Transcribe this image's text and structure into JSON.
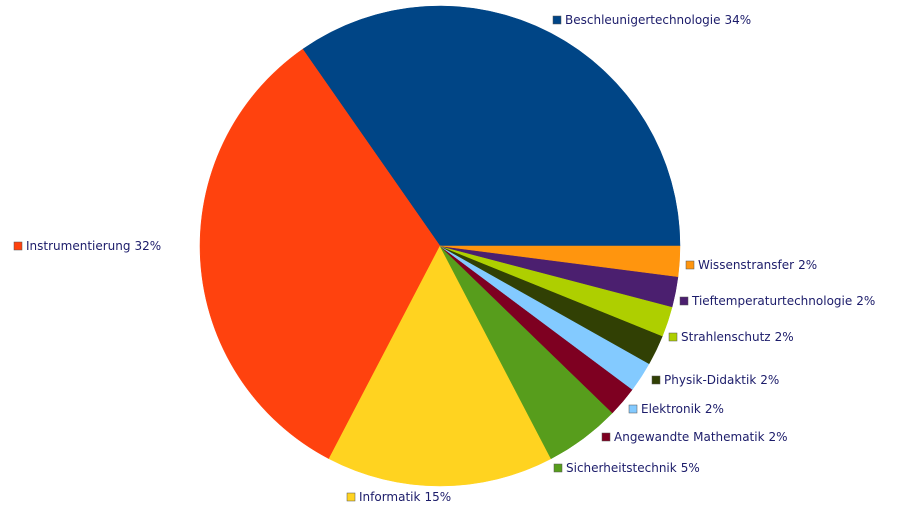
{
  "chart_data": {
    "type": "pie",
    "categories": [
      "Beschleunigertechnologie",
      "Instrumentierung",
      "Informatik",
      "Sicherheitstechnik",
      "Angewandte Mathematik",
      "Elektronik",
      "Physik-Didaktik",
      "Strahlenschutz",
      "Tieftemperaturtechnologie",
      "Wissenstransfer"
    ],
    "values": [
      34,
      32,
      15,
      5,
      2,
      2,
      2,
      2,
      2,
      2
    ],
    "value_labels": [
      "34%",
      "32%",
      "15%",
      "5%",
      "2%",
      "2%",
      "2%",
      "2%",
      "2%",
      "2%"
    ],
    "colors": [
      "#004586",
      "#ff420e",
      "#ffd320",
      "#579d1c",
      "#7e0021",
      "#83caff",
      "#314004",
      "#aecf00",
      "#4b1f6f",
      "#ff950e"
    ]
  }
}
